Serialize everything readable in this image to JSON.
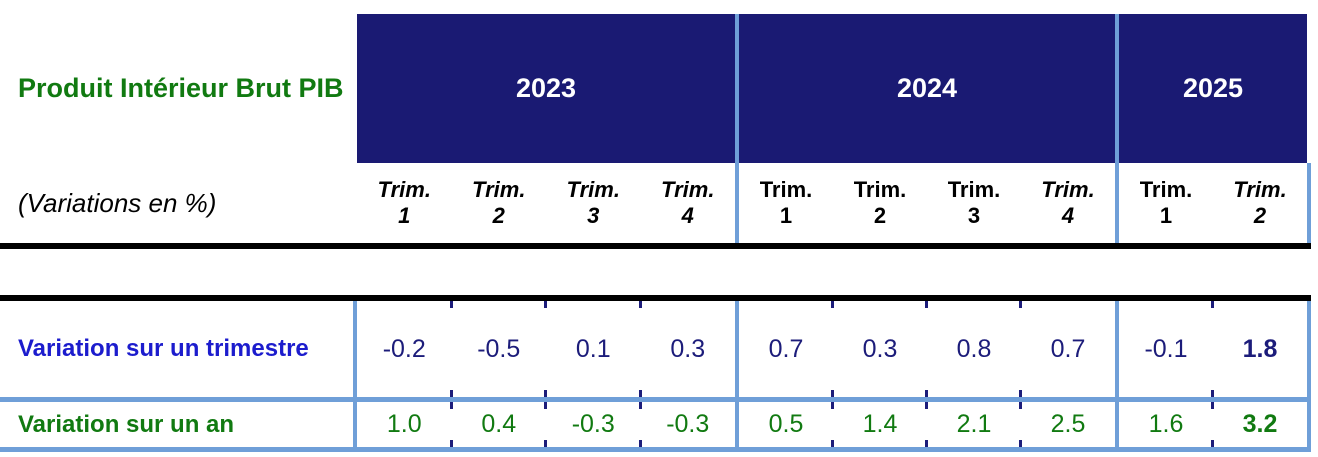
{
  "table": {
    "title": "Produit Intérieur Brut PIB",
    "subtitle": "(Variations en %)",
    "years": [
      {
        "label": "2023",
        "quarters": [
          {
            "t": "Trim.",
            "n": "1"
          },
          {
            "t": "Trim.",
            "n": "2"
          },
          {
            "t": "Trim.",
            "n": "3"
          },
          {
            "t": "Trim.",
            "n": "4"
          }
        ]
      },
      {
        "label": "2024",
        "quarters": [
          {
            "t": "Trim.",
            "n": "1"
          },
          {
            "t": "Trim.",
            "n": "2"
          },
          {
            "t": "Trim.",
            "n": "3"
          },
          {
            "t": "Trim.",
            "n": "4"
          }
        ]
      },
      {
        "label": "2025",
        "quarters": [
          {
            "t": "Trim.",
            "n": "1"
          },
          {
            "t": "Trim.",
            "n": "2"
          }
        ]
      }
    ],
    "rows": [
      {
        "label": "Variation sur un trimestre",
        "values": [
          "-0.2",
          "-0.5",
          "0.1",
          "0.3",
          "0.7",
          "0.3",
          "0.8",
          "0.7",
          "-0.1",
          "1.8"
        ]
      },
      {
        "label": "Variation sur un an",
        "values": [
          "1.0",
          "0.4",
          "-0.3",
          "-0.3",
          "0.5",
          "1.4",
          "2.1",
          "2.5",
          "1.6",
          "3.2"
        ]
      }
    ]
  },
  "colors": {
    "header_fill": "#1a1a73",
    "year_text": "#ffffff",
    "title_green": "#117a11",
    "row1_label_blue": "#1c1ccd",
    "row1_value_navy": "#1c1c7a",
    "row2_green": "#117a11",
    "grid_light_blue": "#6f9fd8",
    "rule_black": "#000000"
  }
}
